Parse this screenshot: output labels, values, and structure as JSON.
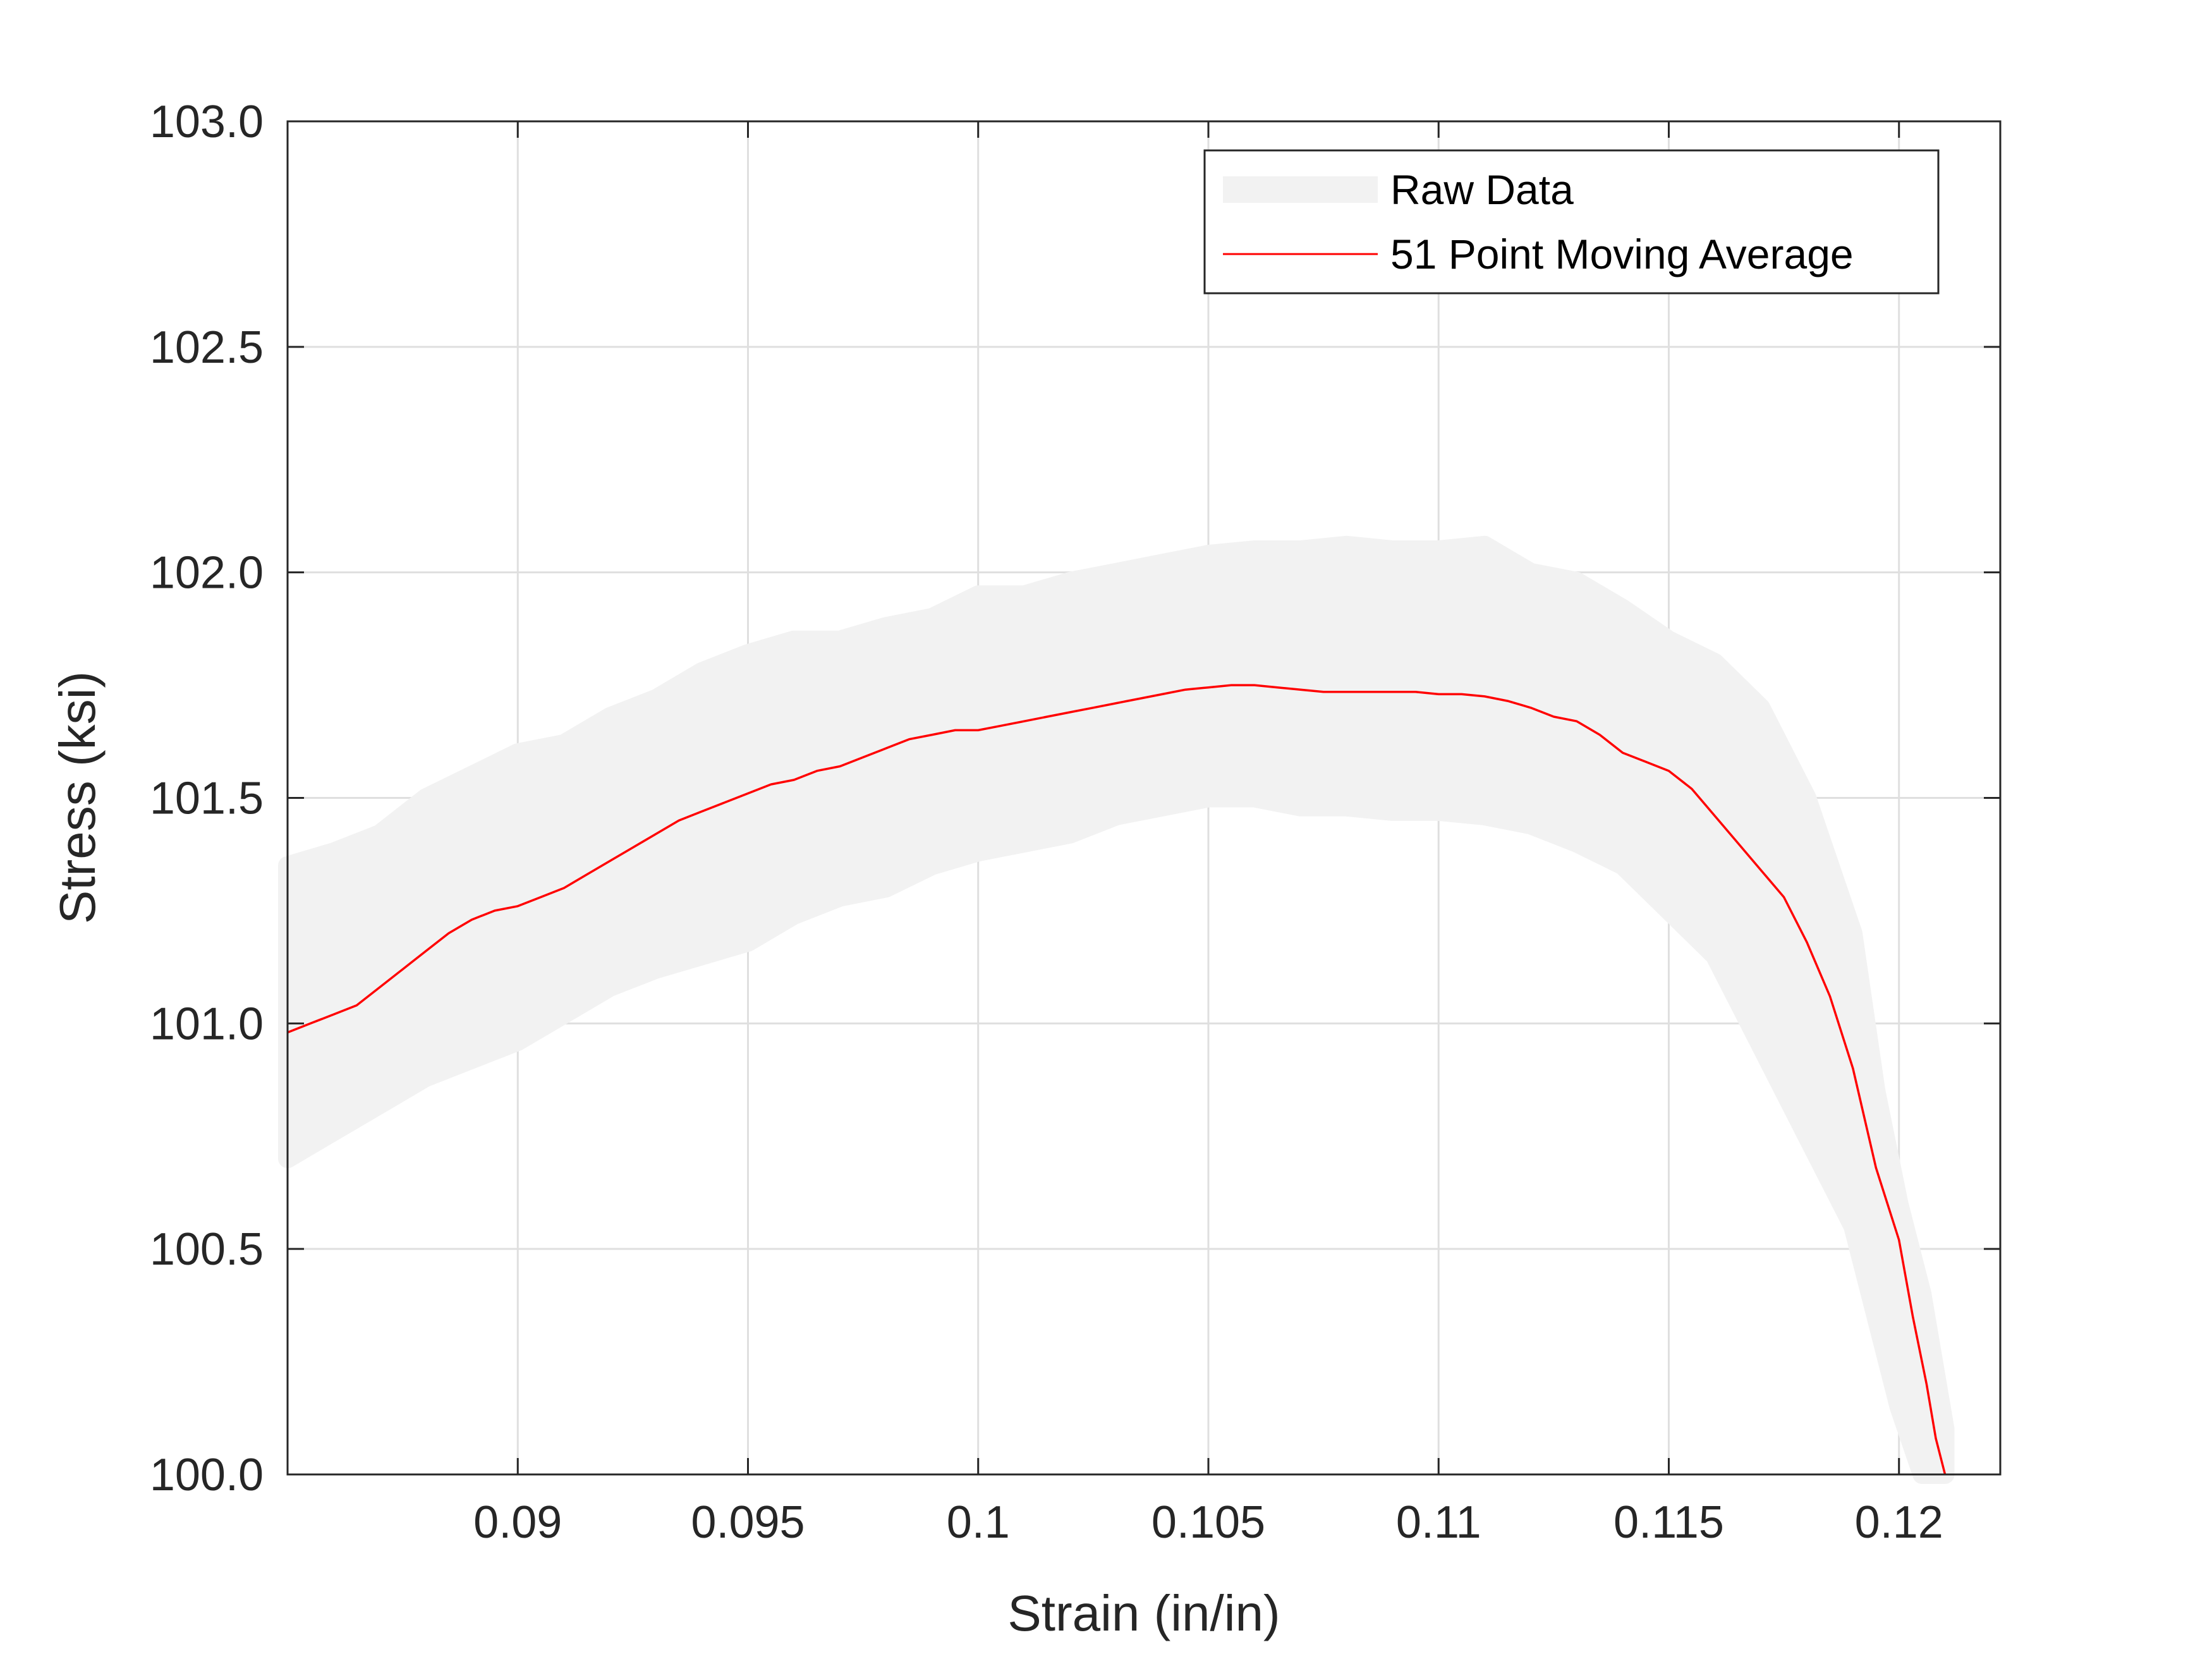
{
  "chart_data": {
    "type": "line",
    "xlabel": "Strain (in/in)",
    "ylabel": "Stress (ksi)",
    "xlim": [
      0.085,
      0.1222
    ],
    "ylim": [
      100.0,
      103.0
    ],
    "x_ticks": [
      0.09,
      0.095,
      0.1,
      0.105,
      0.11,
      0.115,
      0.12
    ],
    "x_tick_labels": [
      "0.09",
      "0.095",
      "0.1",
      "0.105",
      "0.11",
      "0.115",
      "0.12"
    ],
    "y_ticks": [
      100.0,
      100.5,
      101.0,
      101.5,
      102.0,
      102.5,
      103.0
    ],
    "y_tick_labels": [
      "100.0",
      "100.5",
      "101.0",
      "101.5",
      "102.0",
      "102.5",
      "103.0"
    ],
    "grid": true,
    "legend_position": "top-right",
    "series": [
      {
        "name": "Raw Data",
        "color": "#f2f2f2",
        "style": "thick band of noisy raw samples",
        "band_x": [
          0.085,
          0.086,
          0.087,
          0.088,
          0.089,
          0.09,
          0.091,
          0.092,
          0.093,
          0.094,
          0.095,
          0.096,
          0.097,
          0.098,
          0.099,
          0.1,
          0.101,
          0.102,
          0.103,
          0.104,
          0.105,
          0.106,
          0.107,
          0.108,
          0.109,
          0.11,
          0.111,
          0.112,
          0.113,
          0.114,
          0.115,
          0.116,
          0.117,
          0.118,
          0.119,
          0.1195,
          0.12,
          0.1205,
          0.121
        ],
        "band_upper": [
          101.35,
          101.38,
          101.42,
          101.5,
          101.55,
          101.6,
          101.62,
          101.68,
          101.72,
          101.78,
          101.82,
          101.85,
          101.85,
          101.88,
          101.9,
          101.95,
          101.95,
          101.98,
          102.0,
          102.02,
          102.04,
          102.05,
          102.05,
          102.06,
          102.05,
          102.05,
          102.06,
          102.0,
          101.98,
          101.92,
          101.85,
          101.8,
          101.7,
          101.5,
          101.2,
          100.85,
          100.6,
          100.4,
          100.1
        ],
        "band_lower": [
          100.7,
          100.76,
          100.82,
          100.88,
          100.92,
          100.96,
          101.02,
          101.08,
          101.12,
          101.15,
          101.18,
          101.24,
          101.28,
          101.3,
          101.35,
          101.38,
          101.4,
          101.42,
          101.46,
          101.48,
          101.5,
          101.5,
          101.48,
          101.48,
          101.47,
          101.47,
          101.46,
          101.44,
          101.4,
          101.35,
          101.25,
          101.15,
          100.95,
          100.75,
          100.55,
          100.35,
          100.15,
          100.0,
          100.0
        ]
      },
      {
        "name": "51 Point Moving Average",
        "color": "#ff0000",
        "x": [
          0.085,
          0.0855,
          0.086,
          0.0865,
          0.087,
          0.0875,
          0.088,
          0.0885,
          0.089,
          0.0895,
          0.09,
          0.0905,
          0.091,
          0.0915,
          0.092,
          0.0925,
          0.093,
          0.0935,
          0.094,
          0.0945,
          0.095,
          0.0955,
          0.096,
          0.0965,
          0.097,
          0.0975,
          0.098,
          0.0985,
          0.099,
          0.0995,
          0.1,
          0.1005,
          0.101,
          0.1015,
          0.102,
          0.1025,
          0.103,
          0.1035,
          0.104,
          0.1045,
          0.105,
          0.1055,
          0.106,
          0.1065,
          0.107,
          0.1075,
          0.108,
          0.1085,
          0.109,
          0.1095,
          0.11,
          0.1105,
          0.111,
          0.1115,
          0.112,
          0.1125,
          0.113,
          0.1135,
          0.114,
          0.1145,
          0.115,
          0.1155,
          0.116,
          0.1165,
          0.117,
          0.1175,
          0.118,
          0.1185,
          0.119,
          0.1195,
          0.12,
          0.1203,
          0.1206,
          0.1208,
          0.121
        ],
        "y": [
          100.98,
          101.0,
          101.02,
          101.04,
          101.08,
          101.12,
          101.16,
          101.2,
          101.23,
          101.25,
          101.26,
          101.28,
          101.3,
          101.33,
          101.36,
          101.39,
          101.42,
          101.45,
          101.47,
          101.49,
          101.51,
          101.53,
          101.54,
          101.56,
          101.57,
          101.59,
          101.61,
          101.63,
          101.64,
          101.65,
          101.65,
          101.66,
          101.67,
          101.68,
          101.69,
          101.7,
          101.71,
          101.72,
          101.73,
          101.74,
          101.745,
          101.75,
          101.75,
          101.745,
          101.74,
          101.735,
          101.735,
          101.735,
          101.735,
          101.735,
          101.73,
          101.73,
          101.725,
          101.715,
          101.7,
          101.68,
          101.67,
          101.64,
          101.6,
          101.58,
          101.56,
          101.52,
          101.46,
          101.4,
          101.34,
          101.28,
          101.18,
          101.06,
          100.9,
          100.68,
          100.52,
          100.35,
          100.2,
          100.08,
          100.0
        ]
      }
    ]
  }
}
